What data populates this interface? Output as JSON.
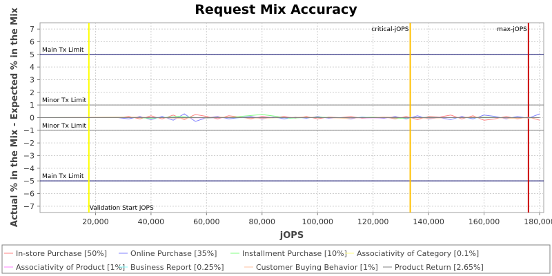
{
  "chart_data": {
    "type": "line",
    "title": "Request Mix Accuracy",
    "xlabel": "jOPS",
    "ylabel": "Actual % in the Mix - Expected % in the Mix",
    "xlim": [
      0,
      181500
    ],
    "ylim": [
      -7.5,
      7.5
    ],
    "x_ticks": [
      20000,
      40000,
      60000,
      80000,
      100000,
      120000,
      140000,
      160000,
      180000
    ],
    "x_tick_labels": [
      "20,000",
      "40,000",
      "60,000",
      "80,000",
      "100,000",
      "120,000",
      "140,000",
      "160,000",
      "180,000"
    ],
    "y_ticks": [
      -7,
      -6,
      -5,
      -4,
      -3,
      -2,
      -1,
      0,
      1,
      2,
      3,
      4,
      5,
      6,
      7
    ],
    "y_tick_labels": [
      "−7",
      "−6",
      "−5",
      "−4",
      "−3",
      "−2",
      "−1",
      "0",
      "1",
      "2",
      "3",
      "4",
      "5",
      "6",
      "7"
    ],
    "grid": true,
    "legend_position": "bottom",
    "horizontal_lines": [
      {
        "label": "Main Tx Limit",
        "y": 5,
        "color": "#000066"
      },
      {
        "label": "Minor Tx Limit",
        "y": 1,
        "color": "#808080"
      },
      {
        "label": "Minor Tx Limit",
        "y": -1,
        "color": "#808080"
      },
      {
        "label": "Main Tx Limit",
        "y": -5,
        "color": "#000066"
      }
    ],
    "vertical_lines": [
      {
        "label": "Validation Start jOPS",
        "x": 17600,
        "color": "#ffff00"
      },
      {
        "label": "critical-jOPS",
        "x": 133400,
        "color": "#ffc000"
      },
      {
        "label": "max-jOPS",
        "x": 176000,
        "color": "#cc0000"
      }
    ],
    "series": [
      {
        "name": "In-store Purchase [50%]",
        "color": "#ff8080",
        "x": [
          0,
          28000,
          32000,
          36000,
          40000,
          44000,
          48000,
          52000,
          56000,
          60000,
          64000,
          68000,
          72000,
          76000,
          80000,
          84000,
          88000,
          92000,
          96000,
          100000,
          104000,
          108000,
          112000,
          116000,
          120000,
          124000,
          128000,
          132000,
          136000,
          140000,
          144000,
          148000,
          152000,
          156000,
          160000,
          164000,
          168000,
          172000,
          176000,
          180000
        ],
        "values": [
          0,
          0,
          0.1,
          -0.1,
          0.15,
          -0.1,
          0.2,
          -0.15,
          0.25,
          0.1,
          -0.1,
          0.15,
          0.05,
          -0.1,
          0.1,
          0,
          0.1,
          -0.05,
          0.1,
          -0.1,
          0.05,
          0,
          0.1,
          -0.05,
          0,
          0.05,
          -0.1,
          0.1,
          -0.15,
          0.1,
          0.05,
          0.2,
          -0.1,
          0.15,
          -0.2,
          -0.1,
          0.1,
          -0.1,
          0.05,
          -0.2
        ]
      },
      {
        "name": "Online Purchase [35%]",
        "color": "#8080ff",
        "x": [
          0,
          28000,
          32000,
          36000,
          40000,
          44000,
          48000,
          52000,
          56000,
          60000,
          64000,
          68000,
          72000,
          76000,
          80000,
          84000,
          88000,
          92000,
          96000,
          100000,
          104000,
          108000,
          112000,
          116000,
          120000,
          124000,
          128000,
          132000,
          136000,
          140000,
          144000,
          148000,
          152000,
          156000,
          160000,
          164000,
          168000,
          172000,
          176000,
          180000
        ],
        "values": [
          0,
          0,
          -0.1,
          0.1,
          -0.15,
          0.1,
          -0.2,
          0.3,
          -0.3,
          0,
          0.1,
          -0.1,
          0,
          0.1,
          -0.1,
          0.05,
          -0.1,
          0.05,
          -0.05,
          0.1,
          -0.05,
          0,
          -0.1,
          0.05,
          0,
          -0.05,
          0.1,
          -0.1,
          0.15,
          -0.1,
          0,
          -0.15,
          0.1,
          -0.1,
          0.2,
          0.1,
          -0.1,
          0.1,
          -0.05,
          0.3
        ]
      },
      {
        "name": "Installment Purchase [10%]",
        "color": "#80ff80",
        "x": [
          0,
          30000,
          40000,
          50000,
          60000,
          70000,
          80000,
          90000,
          100000,
          110000,
          120000,
          130000,
          140000,
          150000,
          160000,
          170000,
          180000
        ],
        "values": [
          0,
          0.05,
          -0.05,
          0.1,
          -0.05,
          0.05,
          0.25,
          -0.05,
          0.05,
          -0.05,
          0.05,
          -0.05,
          0.05,
          0,
          0.05,
          -0.05,
          0
        ]
      },
      {
        "name": "Associativity of Category [0.1%]",
        "color": "#ffff80",
        "x": [
          0,
          40000,
          80000,
          120000,
          160000,
          180000
        ],
        "values": [
          0,
          0,
          0,
          0,
          0,
          0
        ]
      },
      {
        "name": "Associativity of Product [1%]",
        "color": "#ff80ff",
        "x": [
          0,
          40000,
          60000,
          80000,
          100000,
          120000,
          140000,
          160000,
          180000
        ],
        "values": [
          0,
          0.02,
          -0.02,
          0.02,
          0,
          -0.02,
          0.02,
          0,
          0
        ]
      },
      {
        "name": "Business Report [0.25%]",
        "color": "#80ffff",
        "x": [
          0,
          40000,
          80000,
          120000,
          160000,
          180000
        ],
        "values": [
          0,
          0.01,
          -0.01,
          0.01,
          -0.01,
          0
        ]
      },
      {
        "name": "Customer Buying Behavior [1%]",
        "color": "#ffc0a0",
        "x": [
          0,
          35000,
          50000,
          65000,
          80000,
          95000,
          110000,
          125000,
          140000,
          155000,
          170000,
          180000
        ],
        "values": [
          0,
          0.05,
          -0.05,
          0.05,
          -0.05,
          0.05,
          -0.05,
          0.05,
          -0.05,
          0.05,
          -0.05,
          0
        ]
      },
      {
        "name": "Product Return [2.65%]",
        "color": "#808080",
        "x": [
          0,
          40000,
          80000,
          120000,
          160000,
          180000
        ],
        "values": [
          0,
          0,
          0,
          0,
          0,
          0
        ]
      }
    ]
  }
}
